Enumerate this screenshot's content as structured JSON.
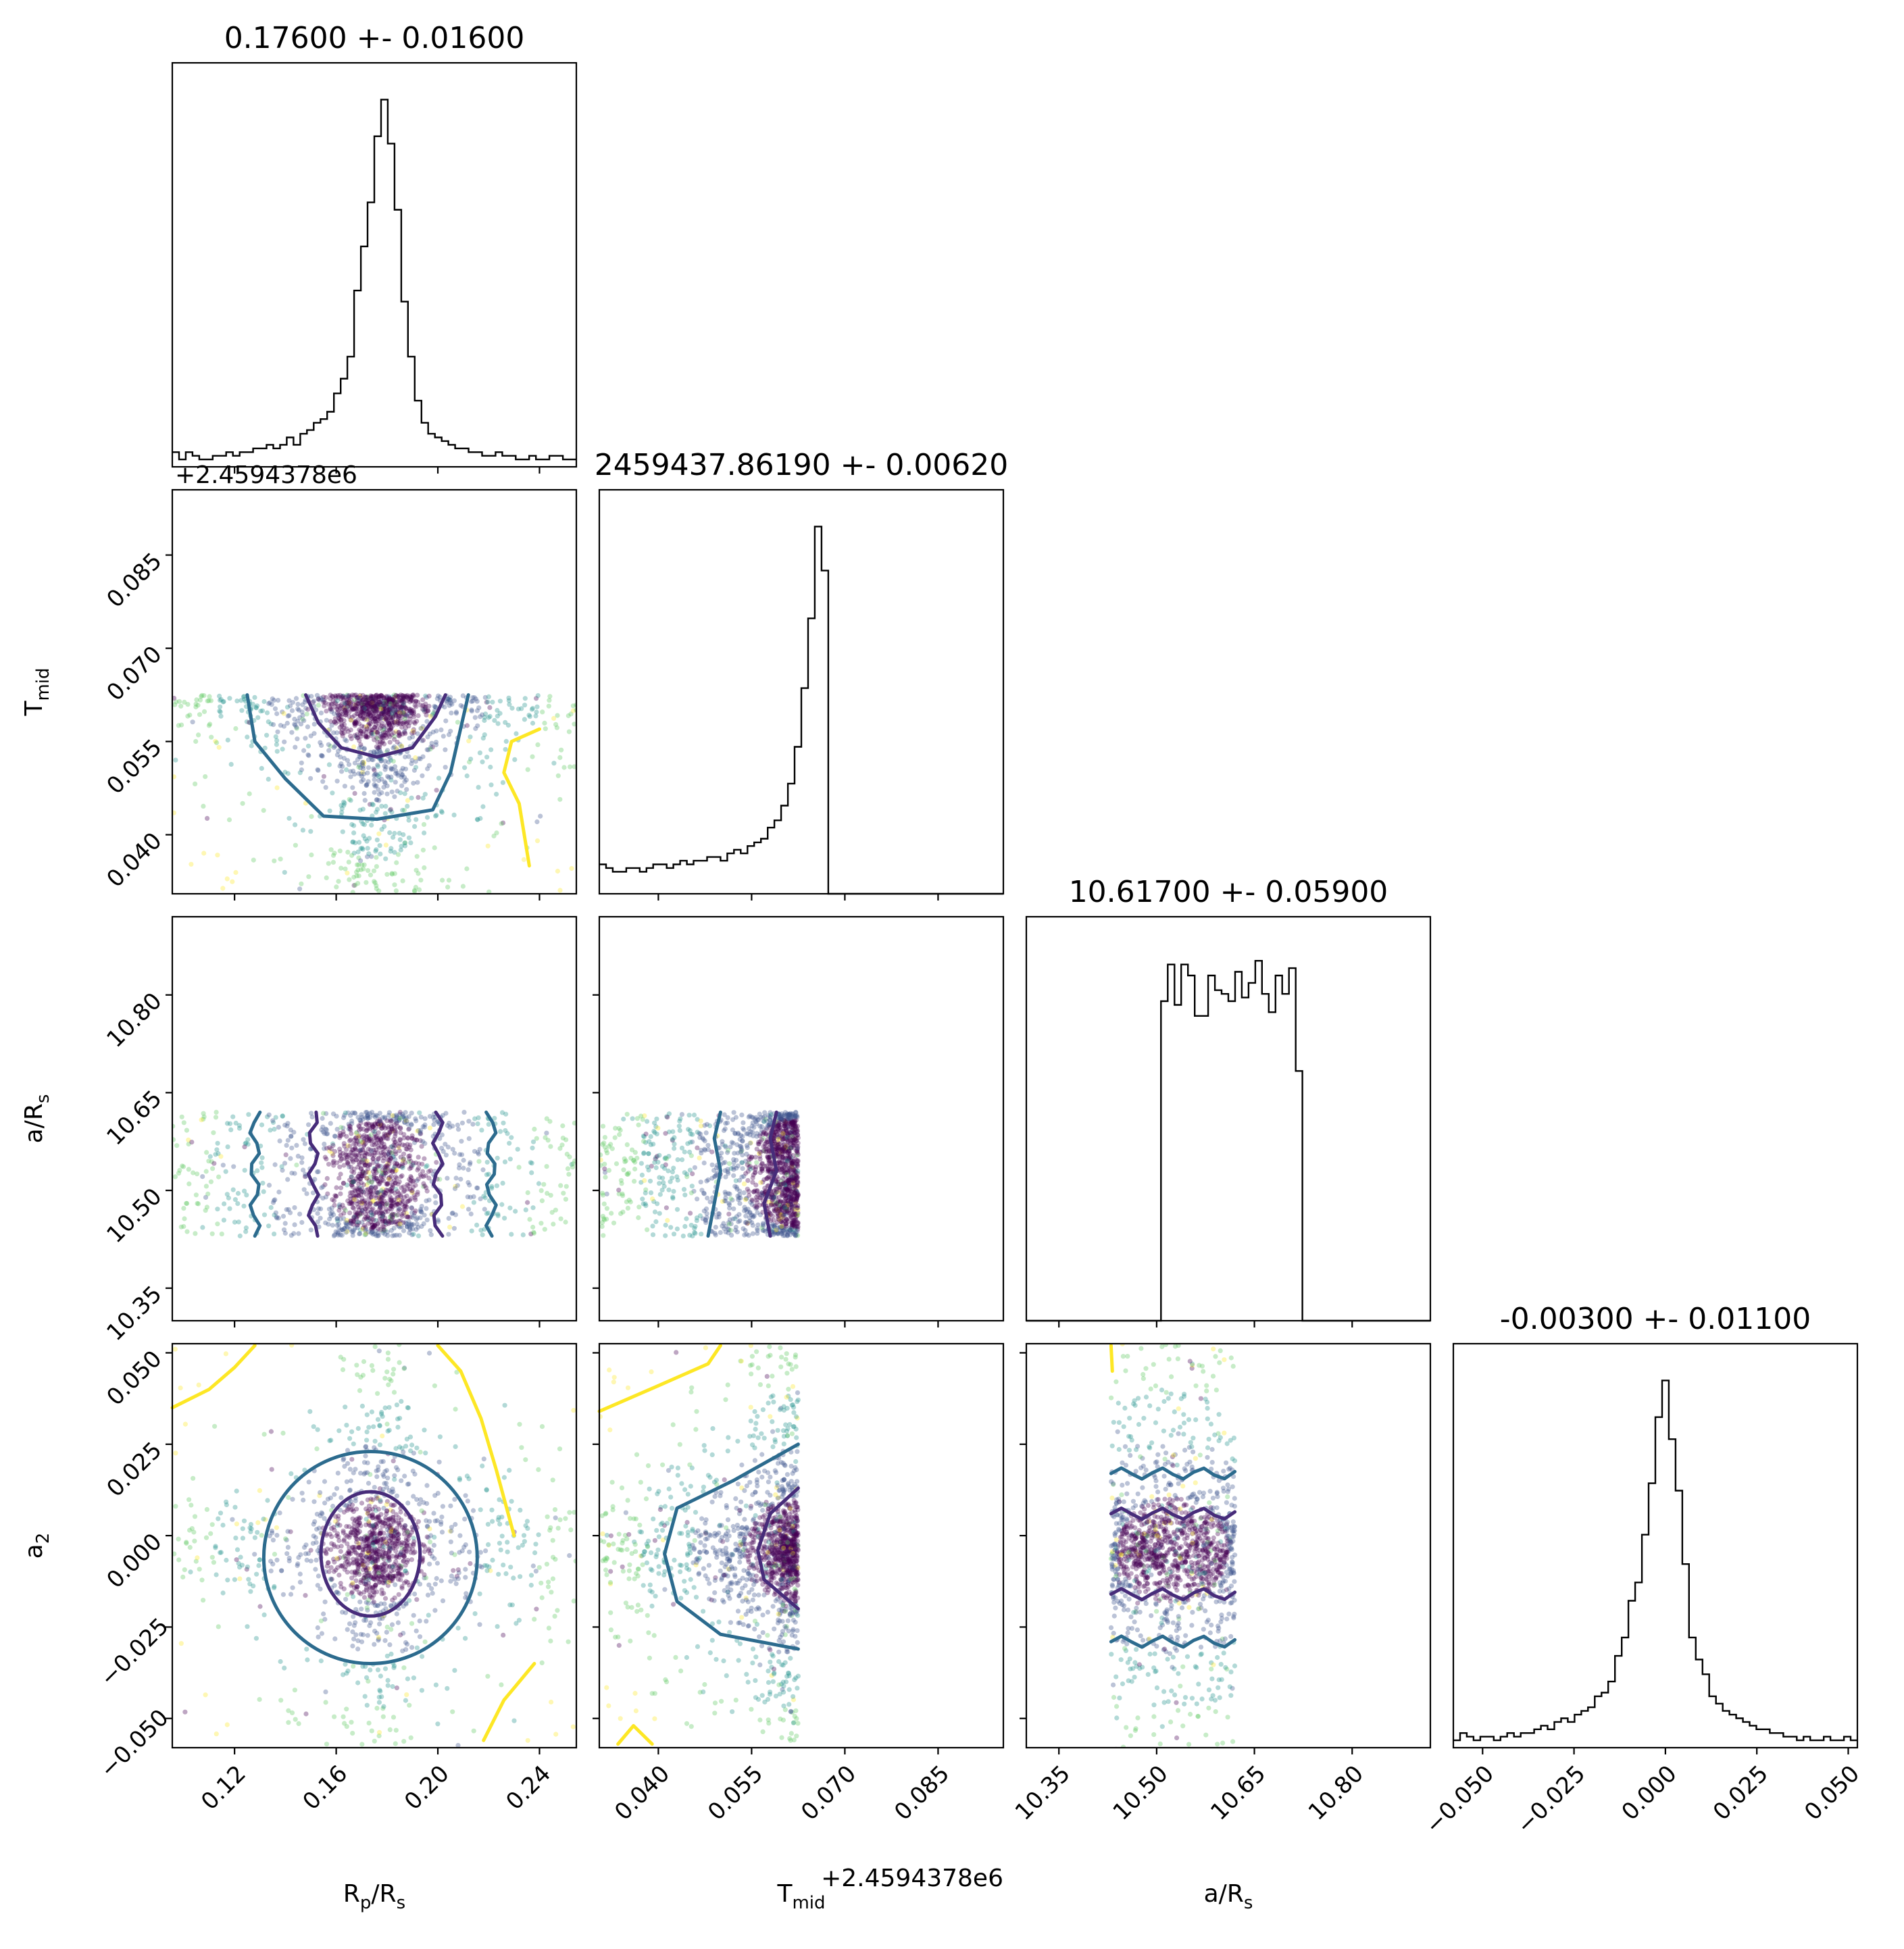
{
  "chart_data": {
    "type": "scatter",
    "kind": "corner-plot",
    "parameters": [
      {
        "key": "rp",
        "label": "R",
        "sub": "p",
        "suffix": "/R",
        "suffix_sub": "s",
        "title": "0.17600 +- 0.01600",
        "lim": [
          0.0955,
          0.2545
        ],
        "ticks": [
          0.12,
          0.16,
          0.2,
          0.24
        ],
        "tick_labels": [
          "0.12",
          "0.16",
          "0.20",
          "0.24"
        ],
        "offset": ""
      },
      {
        "key": "tmid",
        "label": "T",
        "sub": "mid",
        "suffix": "",
        "suffix_sub": "",
        "title": "2459437.86190 +- 0.00620",
        "lim": [
          0.0305,
          0.0955
        ],
        "ticks": [
          0.04,
          0.055,
          0.07,
          0.085
        ],
        "tick_labels": [
          "0.040",
          "0.055",
          "0.070",
          "0.085"
        ],
        "offset": "+2.4594378e6"
      },
      {
        "key": "ars",
        "label": "a/R",
        "sub": "s",
        "suffix": "",
        "suffix_sub": "",
        "title": "10.61700 +- 0.05900",
        "lim": [
          10.3,
          10.92
        ],
        "ticks": [
          10.35,
          10.5,
          10.65,
          10.8
        ],
        "tick_labels": [
          "10.35",
          "10.50",
          "10.65",
          "10.80"
        ],
        "offset": ""
      },
      {
        "key": "a2",
        "label": "a",
        "sub": "2",
        "suffix": "",
        "suffix_sub": "",
        "title": "-0.00300 +- 0.01100",
        "lim": [
          -0.058,
          0.0525
        ],
        "ticks": [
          -0.05,
          -0.025,
          0.0,
          0.025,
          0.05
        ],
        "tick_labels": [
          "−0.050",
          "−0.025",
          "0.000",
          "0.025",
          "0.050"
        ],
        "offset": ""
      }
    ],
    "histograms": [
      {
        "param": "rp",
        "counts": [
          4,
          2,
          4,
          3,
          2,
          2,
          3,
          3,
          4,
          3,
          4,
          4,
          5,
          5,
          6,
          5,
          6,
          8,
          6,
          9,
          10,
          12,
          13,
          15,
          20,
          24,
          30,
          48,
          60,
          72,
          90,
          100,
          88,
          70,
          45,
          30,
          18,
          12,
          9,
          8,
          7,
          6,
          5,
          5,
          4,
          4,
          3,
          3,
          4,
          3,
          3,
          2,
          2,
          3,
          2,
          2,
          3,
          3,
          2,
          2
        ]
      },
      {
        "param": "tmid",
        "counts": [
          8,
          7,
          6,
          6,
          7,
          7,
          6,
          7,
          8,
          8,
          7,
          8,
          9,
          8,
          9,
          9,
          10,
          10,
          9,
          11,
          12,
          11,
          13,
          14,
          15,
          18,
          20,
          24,
          30,
          40,
          56,
          75,
          100,
          88,
          0,
          0,
          0,
          0,
          0,
          0,
          0,
          0,
          0,
          0,
          0,
          0,
          0,
          0,
          0,
          0,
          0,
          0,
          0,
          0,
          0,
          0,
          0,
          0,
          0,
          0
        ]
      },
      {
        "param": "ars",
        "counts": [
          0,
          0,
          0,
          0,
          0,
          0,
          0,
          0,
          0,
          0,
          0,
          0,
          0,
          0,
          0,
          0,
          0,
          0,
          0,
          0,
          87,
          97,
          86,
          97,
          94,
          83,
          83,
          94,
          90,
          89,
          87,
          95,
          88,
          92,
          98,
          89,
          84,
          94,
          89,
          96,
          68,
          0,
          0,
          0,
          0,
          0,
          0,
          0,
          0,
          0,
          0,
          0,
          0,
          0,
          0,
          0,
          0,
          0,
          0,
          0
        ]
      },
      {
        "param": "a2",
        "counts": [
          2,
          4,
          3,
          2,
          3,
          3,
          2,
          3,
          4,
          3,
          4,
          4,
          5,
          6,
          5,
          7,
          8,
          7,
          9,
          10,
          11,
          14,
          15,
          18,
          25,
          30,
          40,
          45,
          58,
          72,
          90,
          100,
          84,
          70,
          50,
          30,
          24,
          20,
          14,
          12,
          10,
          9,
          8,
          7,
          6,
          5,
          5,
          4,
          4,
          3,
          3,
          2,
          3,
          2,
          2,
          3,
          2,
          2,
          3,
          2
        ]
      }
    ],
    "hist_ymax": [
      110,
      110,
      110,
      110
    ],
    "scatter_colors": [
      "#440154",
      "#3b528b",
      "#21918c",
      "#5ec962",
      "#fde725"
    ],
    "contour_colors": {
      "inner": "#472c7a",
      "middle": "#2c6b8e",
      "outer": "#fde725"
    }
  }
}
